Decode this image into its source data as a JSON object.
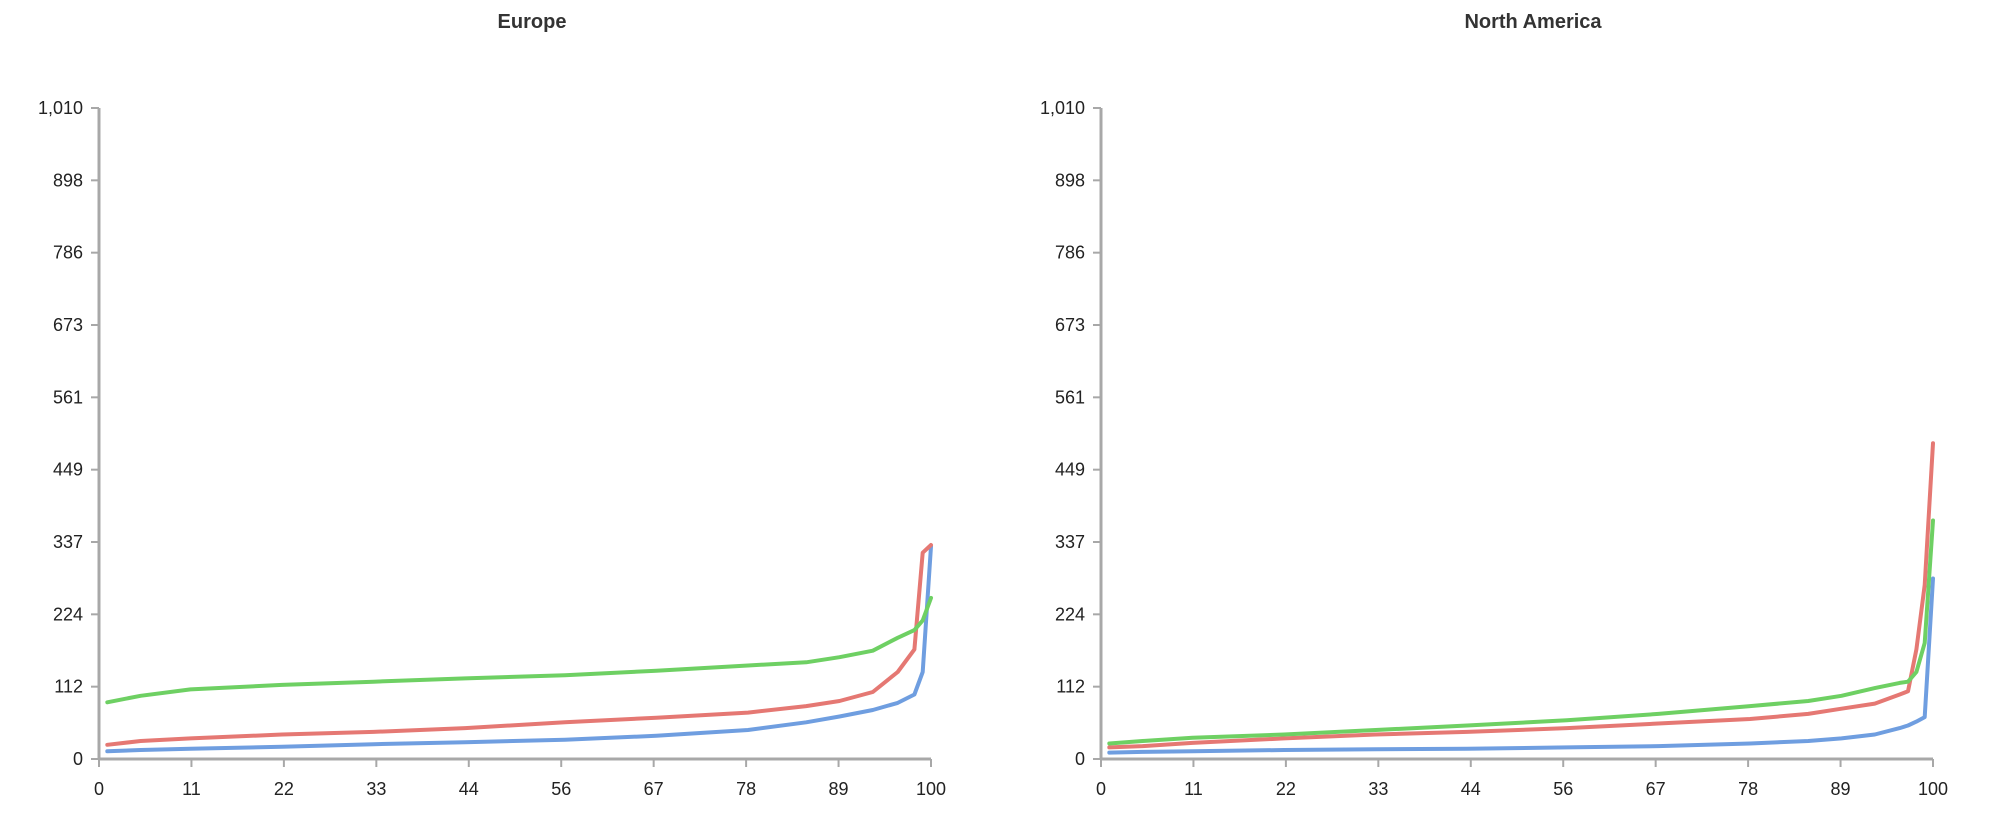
{
  "chart_data": [
    {
      "type": "line",
      "title": "Europe",
      "xlabel": "",
      "ylabel": "",
      "xlim": [
        0,
        100
      ],
      "ylim": [
        0,
        1010
      ],
      "x_ticks": [
        "0",
        "11",
        "22",
        "33",
        "44",
        "56",
        "67",
        "78",
        "89",
        "100"
      ],
      "y_ticks": [
        "0",
        "112",
        "224",
        "337",
        "449",
        "561",
        "673",
        "786",
        "898",
        "1,010"
      ],
      "grid": false,
      "legend": "none",
      "x": [
        1,
        5,
        11,
        22,
        33,
        44,
        56,
        67,
        78,
        85,
        89,
        93,
        96,
        98,
        99,
        100
      ],
      "series": [
        {
          "color": "#6f9ee0",
          "values": [
            12,
            14,
            16,
            19,
            23,
            26,
            30,
            36,
            45,
            57,
            66,
            76,
            87,
            100,
            135,
            330
          ]
        },
        {
          "color": "#e57873",
          "values": [
            22,
            28,
            32,
            38,
            42,
            48,
            57,
            64,
            72,
            82,
            90,
            104,
            135,
            170,
            320,
            332
          ]
        },
        {
          "color": "#6ed063",
          "values": [
            88,
            98,
            108,
            115,
            120,
            125,
            130,
            137,
            145,
            150,
            158,
            168,
            188,
            200,
            215,
            250
          ]
        }
      ]
    },
    {
      "type": "line",
      "title": "North America",
      "xlabel": "",
      "ylabel": "",
      "xlim": [
        0,
        100
      ],
      "ylim": [
        0,
        1010
      ],
      "x_ticks": [
        "0",
        "11",
        "22",
        "33",
        "44",
        "56",
        "67",
        "78",
        "89",
        "100"
      ],
      "y_ticks": [
        "0",
        "112",
        "224",
        "337",
        "449",
        "561",
        "673",
        "786",
        "898",
        "1,010"
      ],
      "grid": false,
      "legend": "none",
      "x": [
        1,
        5,
        11,
        22,
        33,
        44,
        56,
        67,
        78,
        85,
        89,
        93,
        96,
        97,
        98,
        99,
        100
      ],
      "series": [
        {
          "color": "#6f9ee0",
          "values": [
            10,
            11,
            12,
            14,
            15,
            16,
            18,
            20,
            24,
            28,
            32,
            38,
            48,
            52,
            58,
            65,
            280
          ]
        },
        {
          "color": "#e57873",
          "values": [
            18,
            20,
            25,
            32,
            38,
            42,
            48,
            55,
            62,
            70,
            78,
            86,
            100,
            105,
            170,
            270,
            490
          ]
        },
        {
          "color": "#6ed063",
          "values": [
            24,
            28,
            33,
            38,
            45,
            52,
            60,
            70,
            82,
            90,
            98,
            110,
            118,
            120,
            135,
            180,
            370
          ]
        }
      ]
    }
  ]
}
